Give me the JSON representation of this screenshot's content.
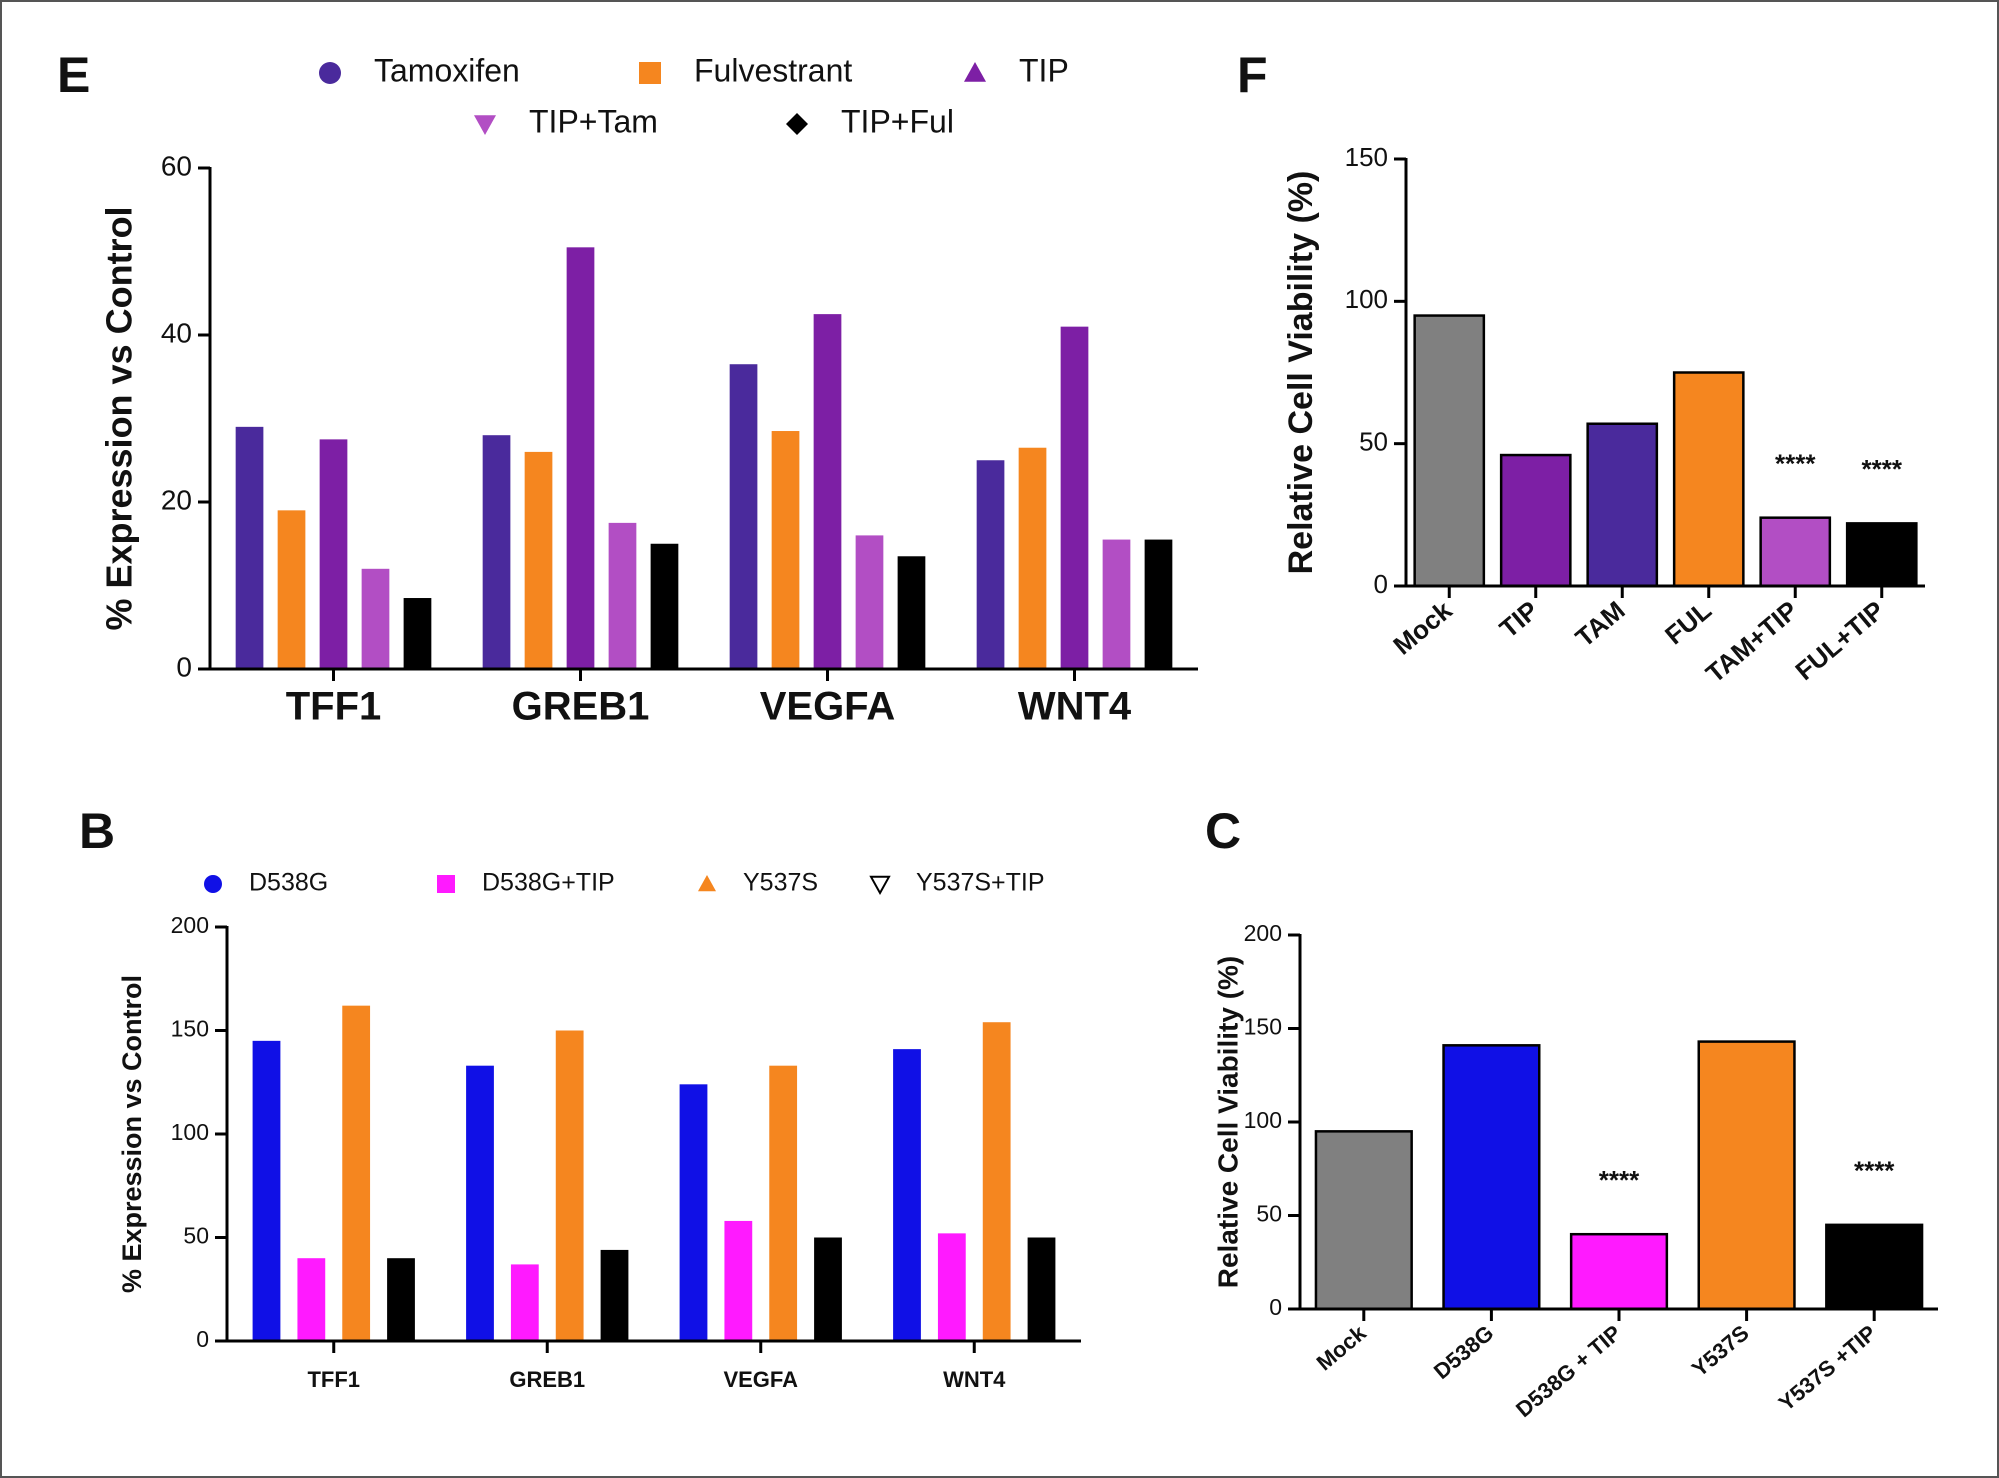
{
  "chart_data": [
    {
      "type": "bar",
      "panel_label": "E",
      "ylabel": "% Expression vs Control",
      "categories": [
        "TFF1",
        "GREB1",
        "VEGFA",
        "WNT4"
      ],
      "series": [
        {
          "name": "Tamoxifen",
          "color": "#4a2a9c",
          "marker": "circle",
          "values": [
            29,
            28,
            36.5,
            25
          ]
        },
        {
          "name": "Fulvestrant",
          "color": "#f5861f",
          "marker": "square",
          "values": [
            19,
            26,
            28.5,
            26.5
          ]
        },
        {
          "name": "TIP",
          "color": "#7d1fa5",
          "marker": "triangle",
          "values": [
            27.5,
            50.5,
            42.5,
            41
          ]
        },
        {
          "name": "TIP+Tam",
          "color": "#b24ec4",
          "marker": "triangle-down",
          "values": [
            12,
            17.5,
            16,
            15.5
          ]
        },
        {
          "name": "TIP+Ful",
          "color": "#000000",
          "marker": "diamond",
          "values": [
            8.5,
            15,
            13.5,
            15.5
          ]
        }
      ],
      "ylim": [
        0,
        60
      ],
      "yticks": [
        0,
        20,
        40,
        60
      ]
    },
    {
      "type": "bar",
      "panel_label": "F",
      "ylabel": "Relative Cell Viability (%)",
      "categories": [
        "Mock",
        "TIP",
        "TAM",
        "FUL",
        "TAM+TIP",
        "FUL+TIP"
      ],
      "values": [
        95,
        46,
        57,
        75,
        24,
        22
      ],
      "colors": [
        "#808080",
        "#7d1fa5",
        "#4a2a9c",
        "#f5861f",
        "#b24ec4",
        "#000000"
      ],
      "annotations": [
        {
          "text": "****",
          "category": "TAM+TIP"
        },
        {
          "text": "****",
          "category": "FUL+TIP"
        }
      ],
      "ylim": [
        0,
        150
      ],
      "yticks": [
        0,
        50,
        100,
        150
      ]
    },
    {
      "type": "bar",
      "panel_label": "B",
      "ylabel": "% Expression vs Control",
      "categories": [
        "TFF1",
        "GREB1",
        "VEGFA",
        "WNT4"
      ],
      "series": [
        {
          "name": "D538G",
          "color": "#1010e6",
          "marker": "circle",
          "values": [
            145,
            133,
            124,
            141
          ]
        },
        {
          "name": "D538G+TIP",
          "color": "#ff1aff",
          "marker": "square",
          "values": [
            40,
            37,
            58,
            52
          ]
        },
        {
          "name": "Y537S",
          "color": "#f5861f",
          "marker": "triangle",
          "values": [
            162,
            150,
            133,
            154
          ]
        },
        {
          "name": "Y537S+TIP",
          "color": "#000000",
          "marker": "triangle-down-open",
          "values": [
            40,
            44,
            50,
            50
          ]
        }
      ],
      "ylim": [
        0,
        200
      ],
      "yticks": [
        0,
        50,
        100,
        150,
        200
      ]
    },
    {
      "type": "bar",
      "panel_label": "C",
      "ylabel": "Relative Cell Viability (%)",
      "categories": [
        "Mock",
        "D538G",
        "D538G + TIP",
        "Y537S",
        "Y537S +TIP"
      ],
      "values": [
        95,
        141,
        40,
        143,
        45
      ],
      "colors": [
        "#808080",
        "#1010e6",
        "#ff1aff",
        "#f5861f",
        "#000000"
      ],
      "annotations": [
        {
          "text": "****",
          "category": "D538G + TIP"
        },
        {
          "text": "****",
          "category": "Y537S +TIP"
        }
      ],
      "ylim": [
        0,
        200
      ],
      "yticks": [
        0,
        50,
        100,
        150,
        200
      ]
    }
  ]
}
